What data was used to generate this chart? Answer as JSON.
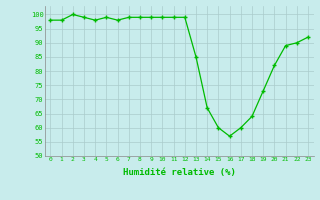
{
  "x": [
    0,
    1,
    2,
    3,
    4,
    5,
    6,
    7,
    8,
    9,
    10,
    11,
    12,
    13,
    14,
    15,
    16,
    17,
    18,
    19,
    20,
    21,
    22,
    23
  ],
  "y": [
    98,
    98,
    100,
    99,
    98,
    99,
    98,
    99,
    99,
    99,
    99,
    99,
    99,
    85,
    67,
    60,
    57,
    60,
    64,
    73,
    82,
    89,
    90,
    92
  ],
  "line_color": "#00bb00",
  "marker": "+",
  "bg_color": "#c8ecec",
  "grid_color": "#aacccc",
  "xlabel": "Humidité relative (%)",
  "ylim": [
    50,
    103
  ],
  "yticks": [
    50,
    55,
    60,
    65,
    70,
    75,
    80,
    85,
    90,
    95,
    100
  ],
  "tick_label_color": "#00bb00",
  "figsize": [
    3.2,
    2.0
  ],
  "dpi": 100
}
